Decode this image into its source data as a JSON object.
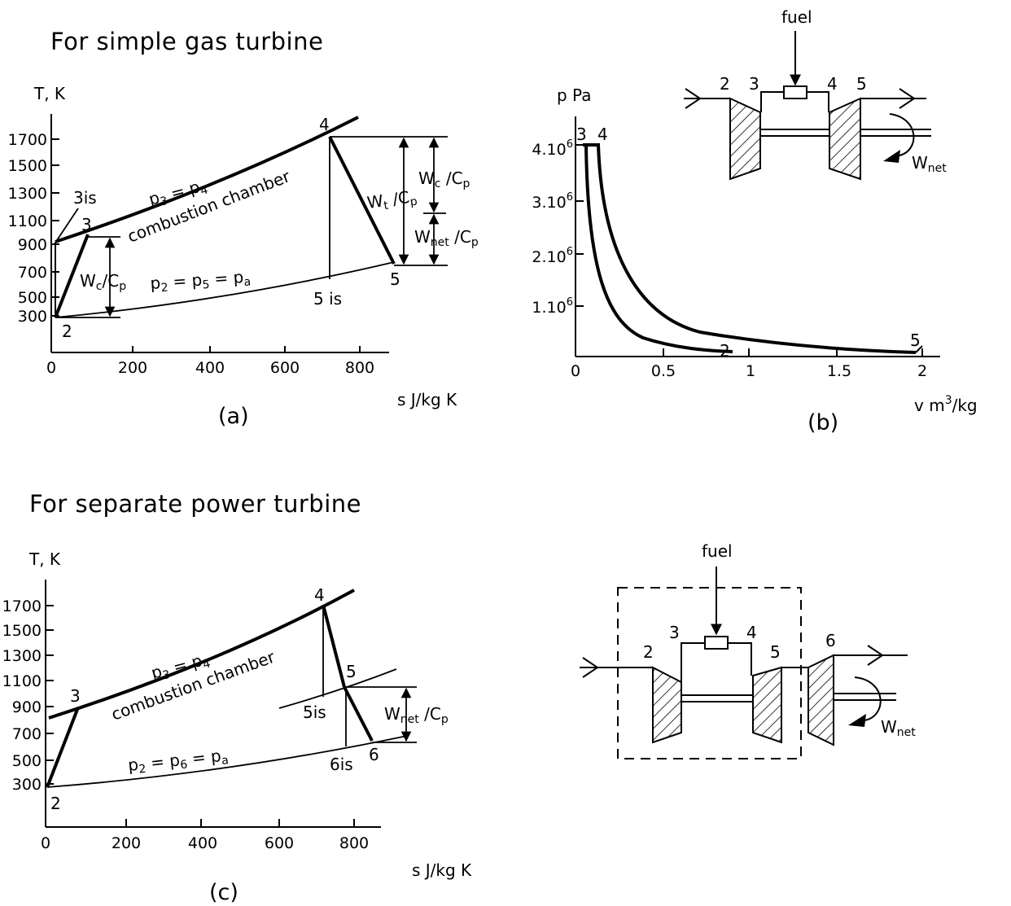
{
  "headings": {
    "simple": "For simple gas turbine",
    "separate": "For separate power turbine"
  },
  "diagram_a": {
    "caption": "(a)",
    "y_axis_label": "T, K",
    "x_axis_label": "s  J/kg K",
    "y_ticks": [
      "1700",
      "1500",
      "1300",
      "1100",
      "900",
      "700",
      "500",
      "300"
    ],
    "x_ticks": [
      "0",
      "200",
      "400",
      "600",
      "800"
    ],
    "point_labels": {
      "p2": "2",
      "p3": "3",
      "p3is": "3is",
      "p4": "4",
      "p5": "5",
      "p5is": "5 is"
    },
    "line_labels": {
      "high_pressure_1": "p",
      "high_pressure_2": "3",
      "high_pressure_3": " = p",
      "high_pressure_4": "4",
      "combustion": "combustion chamber",
      "low_pressure_1": "p",
      "low_pressure_2": "2",
      "low_pressure_3": " = p",
      "low_pressure_4": "5",
      "low_pressure_5": "  = p",
      "low_pressure_6": "a"
    },
    "work_labels": {
      "wc_left_1": "W",
      "wc_left_2": "c",
      "wc_left_3": "/C",
      "wc_left_4": "p",
      "wc_right_1": "W",
      "wc_right_2": "c",
      "wc_right_3": " /C",
      "wc_right_4": "p",
      "wt_1": "W",
      "wt_2": "t",
      "wt_3": " /C",
      "wt_4": "p",
      "wnet_1": "W",
      "wnet_2": "net",
      "wnet_3": " /C",
      "wnet_4": "p"
    }
  },
  "diagram_b": {
    "caption": "(b)",
    "y_axis_label": "p Pa",
    "x_axis_label_1": "v  m",
    "x_axis_label_2": "3",
    "x_axis_label_3": "/kg",
    "y_ticks": [
      {
        "base": "4.10",
        "exp": "6"
      },
      {
        "base": "3.10",
        "exp": "6"
      },
      {
        "base": "2.10",
        "exp": "6"
      },
      {
        "base": "1.10",
        "exp": "6"
      }
    ],
    "x_ticks": [
      "0",
      "0.5",
      "1",
      "1.5",
      "2"
    ],
    "point_labels": {
      "p2": "2",
      "p3": "3",
      "p4": "4",
      "p5": "5"
    }
  },
  "schematic_b": {
    "fuel": "fuel",
    "stations": [
      "2",
      "3",
      "4",
      "5"
    ],
    "wnet_1": "W",
    "wnet_2": "net"
  },
  "diagram_c": {
    "caption": "(c)",
    "y_axis_label": "T, K",
    "x_axis_label": "s  J/kg K",
    "y_ticks": [
      "1700",
      "1500",
      "1300",
      "1100",
      "900",
      "700",
      "500",
      "300"
    ],
    "x_ticks": [
      "0",
      "200",
      "400",
      "600",
      "800"
    ],
    "point_labels": {
      "p2": "2",
      "p3": "3",
      "p4": "4",
      "p5": "5",
      "p5is": "5is",
      "p6": "6",
      "p6is": "6is"
    },
    "line_labels": {
      "high_pressure_1": "p",
      "high_pressure_2": "3",
      "high_pressure_3": " = p",
      "high_pressure_4": "4",
      "combustion": "combustion chamber",
      "low_pressure_1": "p",
      "low_pressure_2": "2",
      "low_pressure_3": " = p",
      "low_pressure_4": "6",
      "low_pressure_5": "  = p",
      "low_pressure_6": "a"
    },
    "work_labels": {
      "wnet_1": "W",
      "wnet_2": "net",
      "wnet_3": " /C",
      "wnet_4": "p"
    }
  },
  "schematic_c": {
    "fuel": "fuel",
    "stations": [
      "2",
      "3",
      "4",
      "5",
      "6"
    ],
    "wnet_1": "W",
    "wnet_2": "net"
  }
}
